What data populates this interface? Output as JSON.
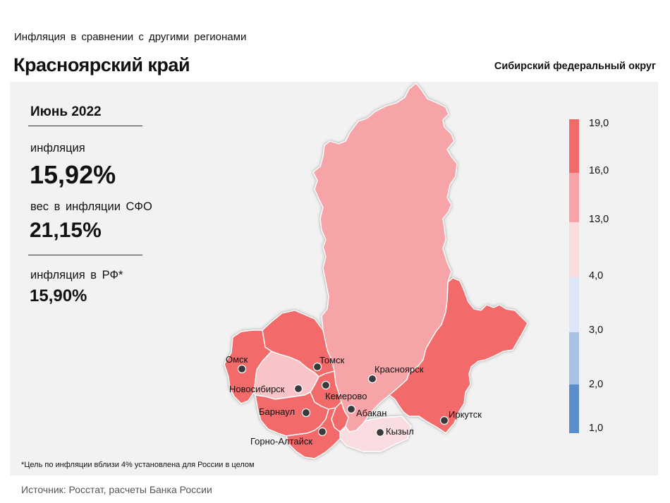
{
  "header": {
    "subtitle": "Инфляция  в сравнении  с другими  регионами",
    "title": "Красноярский край",
    "district": "Сибирский федеральный округ"
  },
  "stats": {
    "period": "Июнь 2022",
    "inflation_label": "инфляция",
    "inflation_value": "15,92%",
    "weight_label": "вес в инфляции  СФО",
    "weight_value": "21,15%",
    "rf_label": "инфляция  в РФ*",
    "rf_value": "15,90%"
  },
  "legend": {
    "ticks": [
      "19,0",
      "16,0",
      "13,0",
      "4,0",
      "3,0",
      "2,0",
      "1,0"
    ],
    "colors": [
      "#f26b6b",
      "#f7a4a8",
      "#f9dde1",
      "#dce6f6",
      "#a8c1e4",
      "#5b8dcb"
    ]
  },
  "cities": [
    "Омск",
    "Томск",
    "Новосибирск",
    "Кемерово",
    "Красноярск",
    "Барнаул",
    "Абакан",
    "Иркутск",
    "Кызыл",
    "Горно-Алтайск"
  ],
  "footnote": "*Цель по инфляции вблизи 4% установлена для России в целом",
  "source": "Источник: Росстат, расчеты Банка России"
}
